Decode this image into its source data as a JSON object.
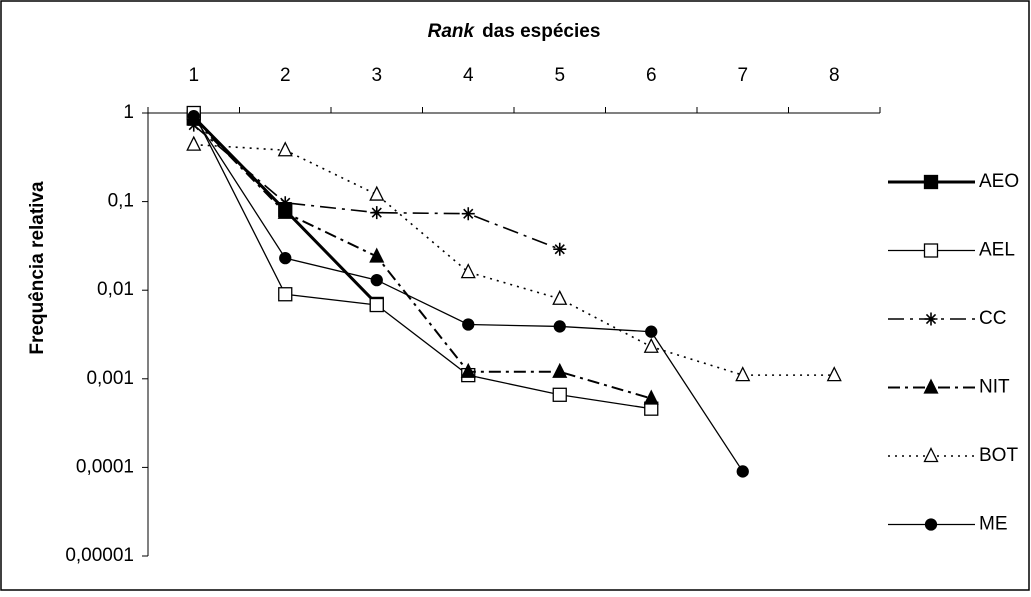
{
  "chart_data": {
    "type": "line",
    "xlabel": [
      "Rank",
      "das espécies"
    ],
    "ylabel": "Frequência relativa",
    "x": [
      1,
      2,
      3,
      4,
      5,
      6,
      7,
      8
    ],
    "xlim": [
      0.5,
      8.5
    ],
    "xticks": [
      1,
      2,
      3,
      4,
      5,
      6,
      7,
      8
    ],
    "xaxis_position": "top",
    "ylim": [
      1e-05,
      1
    ],
    "yscale": "log",
    "yticks": [
      1,
      {
        "value": 0.1,
        "label": "0,1"
      },
      {
        "value": 0.01,
        "label": "0,01"
      },
      {
        "value": 0.001,
        "label": "0,001"
      },
      {
        "value": 0.0001,
        "label": "0,0001"
      },
      {
        "value": 1e-05,
        "label": "0,00001"
      }
    ],
    "grid": false,
    "legend": "right",
    "series": [
      {
        "name": "AEO",
        "color": "#000000",
        "line_width": 3,
        "dash": "solid",
        "marker": "square-filled",
        "values": [
          0.9,
          0.08,
          0.007,
          null,
          null,
          null,
          null,
          null
        ]
      },
      {
        "name": "AEL",
        "color": "#000000",
        "line_width": 1.3,
        "dash": "solid",
        "marker": "square-open",
        "values": [
          1,
          0.009,
          0.0068,
          0.0011,
          0.00066,
          0.00046,
          null,
          null
        ]
      },
      {
        "name": "CC",
        "color": "#000000",
        "line_width": 1.6,
        "dash": "longdashdot",
        "marker": "asterisk",
        "values": [
          0.73,
          0.097,
          0.075,
          0.073,
          0.029,
          null,
          null,
          null
        ]
      },
      {
        "name": "NIT",
        "color": "#000000",
        "line_width": 2,
        "dash": "dashdot",
        "marker": "triangle-filled",
        "values": [
          0.85,
          0.075,
          0.024,
          0.0012,
          0.0012,
          0.0006,
          null,
          null
        ]
      },
      {
        "name": "BOT",
        "color": "#000000",
        "line_width": 1.6,
        "dash": "dotted",
        "marker": "triangle-open",
        "values": [
          0.44,
          0.38,
          0.12,
          0.016,
          0.008,
          0.0023,
          0.0011,
          0.0011
        ]
      },
      {
        "name": "ME",
        "color": "#000000",
        "line_width": 1.3,
        "dash": "solid",
        "marker": "circle-filled",
        "values": [
          0.92,
          0.023,
          0.013,
          0.0041,
          0.0039,
          0.0034,
          9e-05,
          null
        ]
      }
    ]
  }
}
